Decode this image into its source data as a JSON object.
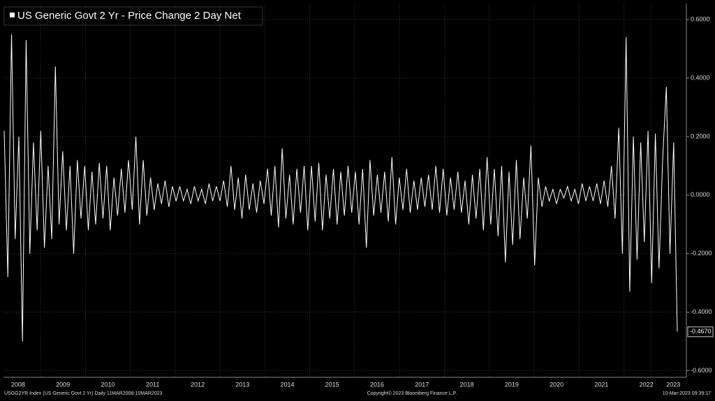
{
  "chart_data": {
    "type": "line",
    "title": "US Generic Govt 2 Yr - Price Change 2 Day Net",
    "footer_left": "USGG2YR Index (US Generic Govt 2 Yr)  Daily 11MAR2008-10MAR2023",
    "footer_center": "Copyright© 2023 Bloomberg Finance L.P.",
    "footer_right": "10-Mar-2023 09:39:17",
    "color": "#ffffff",
    "grid": true,
    "xlim": [
      2008.19,
      2023.19
    ],
    "ylim": [
      -0.62,
      0.655
    ],
    "xticks": [
      {
        "value": 2008.5,
        "label": "2008"
      },
      {
        "value": 2009.5,
        "label": "2009"
      },
      {
        "value": 2010.5,
        "label": "2010"
      },
      {
        "value": 2011.5,
        "label": "2011"
      },
      {
        "value": 2012.5,
        "label": "2012"
      },
      {
        "value": 2013.5,
        "label": "2013"
      },
      {
        "value": 2014.5,
        "label": "2014"
      },
      {
        "value": 2015.5,
        "label": "2015"
      },
      {
        "value": 2016.5,
        "label": "2016"
      },
      {
        "value": 2017.5,
        "label": "2017"
      },
      {
        "value": 2018.5,
        "label": "2018"
      },
      {
        "value": 2019.5,
        "label": "2019"
      },
      {
        "value": 2020.5,
        "label": "2020"
      },
      {
        "value": 2021.5,
        "label": "2021"
      },
      {
        "value": 2022.5,
        "label": "2022"
      },
      {
        "value": 2023.1,
        "label": "2023"
      }
    ],
    "yticks": [
      {
        "value": 0.6,
        "label": "0.6000"
      },
      {
        "value": 0.4,
        "label": "0.4000"
      },
      {
        "value": 0.2,
        "label": "0.2000"
      },
      {
        "value": 0,
        "label": "0.0000"
      },
      {
        "value": -0.2,
        "label": "-0.2000"
      },
      {
        "value": -0.4,
        "label": "-0.4000"
      },
      {
        "value": -0.6,
        "label": "-0.6000"
      }
    ],
    "values": [
      0.22,
      -0.28,
      0.55,
      -0.15,
      0.2,
      -0.5,
      0.53,
      -0.2,
      0.18,
      -0.12,
      0.22,
      -0.18,
      0.1,
      -0.15,
      0.44,
      -0.1,
      0.15,
      -0.12,
      0.1,
      -0.2,
      0.12,
      -0.08,
      0.1,
      -0.12,
      0.08,
      -0.1,
      0.11,
      -0.08,
      0.1,
      -0.12,
      0.06,
      -0.07,
      0.09,
      -0.06,
      0.12,
      -0.05,
      0.2,
      -0.1,
      0.12,
      -0.07,
      0.06,
      -0.05,
      0.04,
      -0.03,
      0.05,
      -0.04,
      0.03,
      -0.02,
      0.03,
      -0.02,
      0.02,
      -0.03,
      0.03,
      -0.02,
      0.02,
      -0.03,
      0.04,
      -0.02,
      0.03,
      -0.02,
      0.05,
      -0.04,
      0.1,
      -0.05,
      0.06,
      -0.08,
      0.07,
      -0.05,
      0.04,
      -0.06,
      0.05,
      -0.03,
      0.09,
      -0.07,
      0.1,
      -0.11,
      0.16,
      -0.08,
      0.07,
      -0.1,
      0.09,
      -0.06,
      0.1,
      -0.12,
      0.1,
      -0.09,
      0.11,
      -0.12,
      0.07,
      -0.08,
      0.09,
      -0.1,
      0.08,
      -0.07,
      0.1,
      -0.06,
      0.08,
      -0.1,
      0.09,
      -0.18,
      0.12,
      -0.07,
      0.07,
      -0.06,
      0.08,
      -0.09,
      0.13,
      -0.1,
      0.06,
      -0.05,
      0.09,
      -0.06,
      0.05,
      -0.05,
      0.06,
      -0.04,
      0.07,
      -0.05,
      0.1,
      -0.06,
      0.09,
      -0.07,
      0.06,
      -0.05,
      0.08,
      -0.06,
      0.05,
      -0.1,
      0.07,
      -0.08,
      0.09,
      -0.12,
      0.13,
      -0.1,
      0.09,
      -0.14,
      0.1,
      -0.23,
      0.08,
      -0.17,
      0.12,
      -0.15,
      0.06,
      -0.08,
      0.17,
      -0.24,
      0.06,
      -0.04,
      0.03,
      -0.02,
      0.02,
      -0.03,
      0.02,
      -0.01,
      0.03,
      -0.02,
      0.02,
      -0.03,
      0.04,
      -0.02,
      0.03,
      -0.02,
      0.04,
      -0.03,
      0.05,
      -0.04,
      0.1,
      -0.08,
      0.23,
      -0.2,
      0.54,
      -0.33,
      0.2,
      -0.22,
      0.18,
      -0.16,
      0.22,
      -0.3,
      0.21,
      -0.25,
      0.12,
      0.37,
      -0.2,
      0.18,
      -0.467
    ],
    "last_value_label": "-0.4670"
  }
}
